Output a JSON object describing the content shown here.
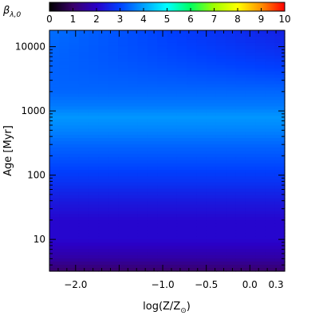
{
  "chart_data": {
    "type": "heatmap",
    "colorbar": {
      "label_symbol": "β",
      "label_subscript": "λ,0",
      "ticks": [
        "0",
        "1",
        "2",
        "3",
        "4",
        "5",
        "6",
        "7",
        "8",
        "9",
        "10"
      ],
      "range": [
        0,
        10
      ],
      "colormap": [
        "#000000",
        "#3a006a",
        "#2a00c8",
        "#0040ff",
        "#00a0ff",
        "#00ffff",
        "#00ff60",
        "#a0ff00",
        "#ffff00",
        "#ff9000",
        "#ff0000"
      ]
    },
    "x_axis": {
      "label_prefix": "log(Z/Z",
      "label_sub": "⊙",
      "label_suffix": ")",
      "range": [
        -2.3,
        0.4
      ],
      "ticks": [
        {
          "value": -2.0,
          "label": "−2.0"
        },
        {
          "value": -1.0,
          "label": "−1.0"
        },
        {
          "value": -0.5,
          "label": "−0.5"
        },
        {
          "value": 0.0,
          "label": "0.0"
        },
        {
          "value": 0.3,
          "label": "0.3"
        }
      ]
    },
    "y_axis": {
      "label": "Age",
      "unit": "[Myr]",
      "scale": "log",
      "range": [
        3.2,
        18000
      ],
      "ticks": [
        {
          "value": 10,
          "label": "10"
        },
        {
          "value": 100,
          "label": "100"
        },
        {
          "value": 1000,
          "label": "1000"
        },
        {
          "value": 10000,
          "label": "10000"
        }
      ]
    },
    "value_profile_by_age": [
      {
        "age": 3.2,
        "value": 1.0
      },
      {
        "age": 5,
        "value": 1.6
      },
      {
        "age": 10,
        "value": 2.1
      },
      {
        "age": 20,
        "value": 2.1
      },
      {
        "age": 40,
        "value": 2.4
      },
      {
        "age": 80,
        "value": 2.8
      },
      {
        "age": 150,
        "value": 3.1
      },
      {
        "age": 300,
        "value": 3.4
      },
      {
        "age": 500,
        "value": 3.7
      },
      {
        "age": 800,
        "value": 3.9
      },
      {
        "age": 1200,
        "value": 3.6
      },
      {
        "age": 2000,
        "value": 3.4
      },
      {
        "age": 4000,
        "value": 3.3
      },
      {
        "age": 8000,
        "value": 3.2
      },
      {
        "age": 18000,
        "value": 3.1
      }
    ],
    "old_age_metallicity_trend": {
      "age_start": 2000,
      "values_at_x": [
        {
          "x": -2.3,
          "value": 3.5
        },
        {
          "x": 0.4,
          "value": 2.5
        }
      ]
    }
  }
}
